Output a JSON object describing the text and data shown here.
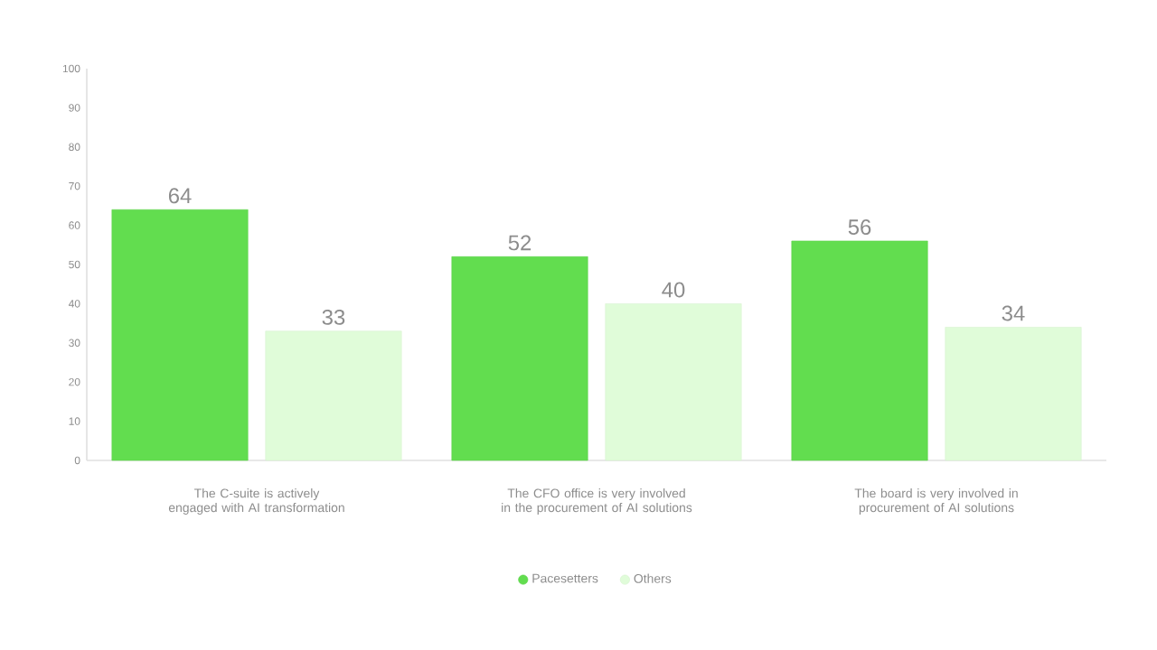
{
  "chart_data": {
    "type": "bar",
    "categories": [
      "The C-suite is actively engaged with AI transformation",
      "The CFO office is very involved in the procurement of AI solutions",
      "The board is very involved in procurement of AI solutions"
    ],
    "series": [
      {
        "name": "Pacesetters",
        "color": "#62dd4f",
        "values": [
          64,
          52,
          56
        ]
      },
      {
        "name": "Others",
        "color": "#e0fcd9",
        "values": [
          33,
          40,
          34
        ]
      }
    ],
    "ylim": [
      0,
      100
    ],
    "yticks": [
      0,
      10,
      20,
      30,
      40,
      50,
      60,
      70,
      80,
      90,
      100
    ],
    "data_labels": true,
    "legend": "bottom",
    "grid": false
  }
}
